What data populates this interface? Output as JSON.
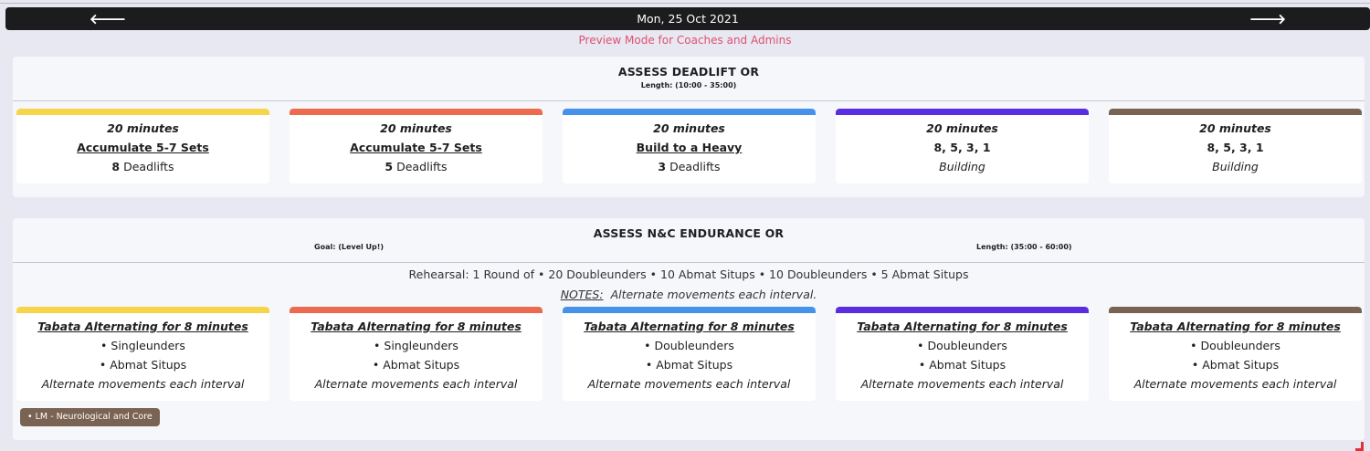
{
  "nav": {
    "prev_icon": "arrow-left-icon",
    "next_icon": "arrow-right-icon",
    "prev_glyph": "🡐",
    "next_glyph": "🡒",
    "date": "Mon, 25 Oct 2021"
  },
  "preview_text": "Preview Mode for Coaches and Admins",
  "colors": {
    "yellow": "#f7d54a",
    "red": "#ec6a50",
    "blue": "#4592ea",
    "purple": "#5a2de0",
    "brown": "#7a6352",
    "preview": "#e0506e"
  },
  "section1": {
    "title": "ASSESS DEADLIFT OR",
    "length": "Length: (10:00 - 35:00)",
    "tiles": [
      {
        "duration": "20 minutes",
        "scheme": "Accumulate 5-7 Sets",
        "reps_num": "8",
        "reps_text": " Deadlifts"
      },
      {
        "duration": "20 minutes",
        "scheme": "Accumulate 5-7 Sets",
        "reps_num": "5",
        "reps_text": " Deadlifts"
      },
      {
        "duration": "20 minutes",
        "scheme": "Build to a Heavy",
        "reps_num": "3",
        "reps_text": " Deadlifts"
      },
      {
        "duration": "20 minutes",
        "scheme": "8, 5, 3, 1",
        "note": "Building"
      },
      {
        "duration": "20 minutes",
        "scheme": "8, 5, 3, 1",
        "note": "Building"
      }
    ]
  },
  "section2": {
    "title": "ASSESS N&C ENDURANCE OR",
    "goal": "Goal: (Level Up!)",
    "length": "Length: (35:00 - 60:00)",
    "rehearsal": "Rehearsal: 1 Round of • 20 Doubleunders • 10 Abmat Situps • 10 Doubleunders • 5 Abmat Situps",
    "notes_label": "NOTES:",
    "notes_text": "Alternate movements each interval.",
    "tiles": [
      {
        "heading": "Tabata Alternating for 8 minutes",
        "move1": "• Singleunders",
        "move2": "• Abmat Situps",
        "note": "Alternate movements each interval"
      },
      {
        "heading": "Tabata Alternating for 8 minutes",
        "move1": "• Singleunders",
        "move2": "• Abmat Situps",
        "note": "Alternate movements each interval"
      },
      {
        "heading": "Tabata Alternating for 8 minutes",
        "move1": "• Doubleunders",
        "move2": "• Abmat Situps",
        "note": "Alternate movements each interval"
      },
      {
        "heading": "Tabata Alternating for 8 minutes",
        "move1": "• Doubleunders",
        "move2": "• Abmat Situps",
        "note": "Alternate movements each interval"
      },
      {
        "heading": "Tabata Alternating for 8 minutes",
        "move1": "• Doubleunders",
        "move2": "• Abmat Situps",
        "note": "Alternate movements each interval"
      }
    ],
    "tag": "• LM - Neurological and Core"
  }
}
